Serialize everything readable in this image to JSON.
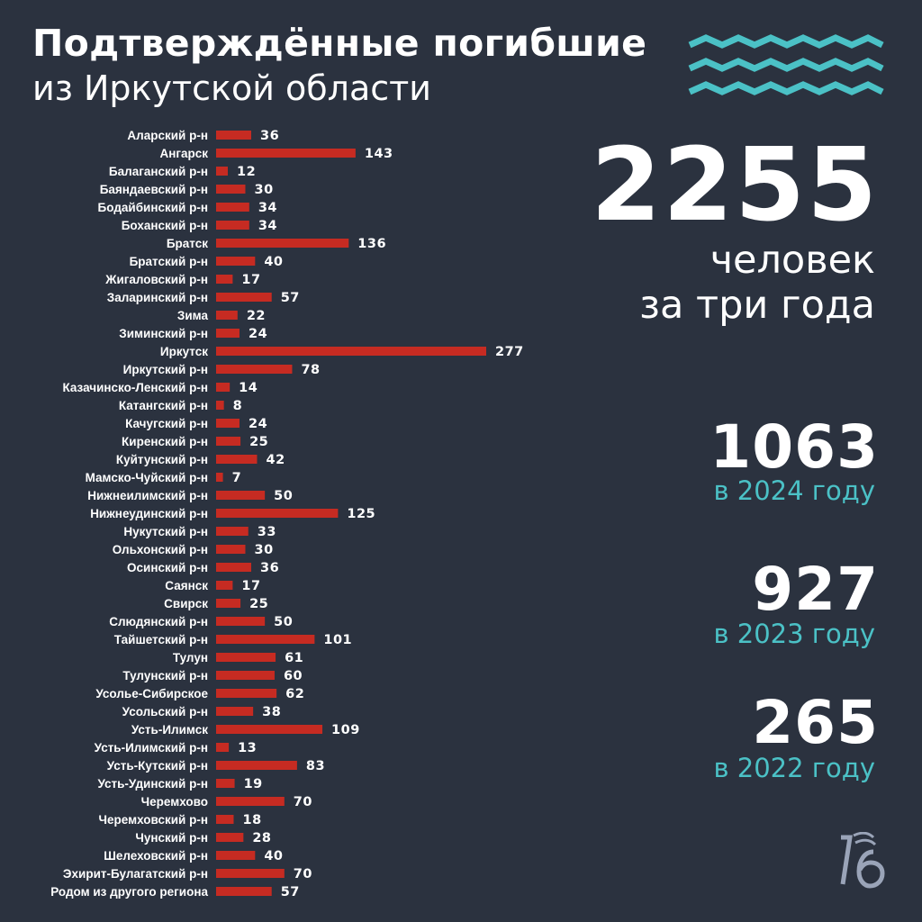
{
  "title": {
    "line1": "Подтверждённые погибшие",
    "line2": "из Иркутской области"
  },
  "colors": {
    "background": "#2b323f",
    "bar": "#c62b22",
    "accent": "#4bc1c6",
    "text": "#ffffff",
    "logo": "#9aa4b8"
  },
  "icons": {
    "waves": "zigzag-waves-icon",
    "logo": "lb-logo-icon"
  },
  "summary": {
    "total": {
      "value": "2255",
      "caption_line1": "человек",
      "caption_line2": "за три года"
    },
    "years": [
      {
        "value": "1063",
        "caption": "в 2024 году"
      },
      {
        "value": "927",
        "caption": "в 2023 году"
      },
      {
        "value": "265",
        "caption": "в 2022 году"
      }
    ]
  },
  "chart_data": {
    "type": "bar",
    "orientation": "horizontal",
    "title": "Подтверждённые погибшие из Иркутской области",
    "xlabel": "",
    "ylabel": "",
    "grid": false,
    "legend": "none",
    "xlim": [
      0,
      277
    ],
    "categories": [
      "Аларский р-н",
      "Ангарск",
      "Балаганский р-н",
      "Баяндаевский р-н",
      "Бодайбинский р-н",
      "Боханский р-н",
      "Братск",
      "Братский р-н",
      "Жигаловский р-н",
      "Заларинский р-н",
      "Зима",
      "Зиминский р-н",
      "Иркутск",
      "Иркутский р-н",
      "Казачинско-Ленский р-н",
      "Катангский р-н",
      "Качугский р-н",
      "Киренский р-н",
      "Куйтунский р-н",
      "Мамско-Чуйский р-н",
      "Нижнеилимский р-н",
      "Нижнеудинский р-н",
      "Нукутский р-н",
      "Ольхонский р-н",
      "Осинский р-н",
      "Саянск",
      "Свирск",
      "Слюдянский р-н",
      "Тайшетский р-н",
      "Тулун",
      "Тулунский р-н",
      "Усолье-Сибирское",
      "Усольский р-н",
      "Усть-Илимск",
      "Усть-Илимский р-н",
      "Усть-Кутский р-н",
      "Усть-Удинский р-н",
      "Черемхово",
      "Черемховский р-н",
      "Чунский р-н",
      "Шелеховский р-н",
      "Эхирит-Булагатский р-н",
      "Родом из другого региона"
    ],
    "values": [
      36,
      143,
      12,
      30,
      34,
      34,
      136,
      40,
      17,
      57,
      22,
      24,
      277,
      78,
      14,
      8,
      24,
      25,
      42,
      7,
      50,
      125,
      33,
      30,
      36,
      17,
      25,
      50,
      101,
      61,
      60,
      62,
      38,
      109,
      13,
      83,
      19,
      70,
      18,
      28,
      40,
      70,
      57
    ]
  }
}
